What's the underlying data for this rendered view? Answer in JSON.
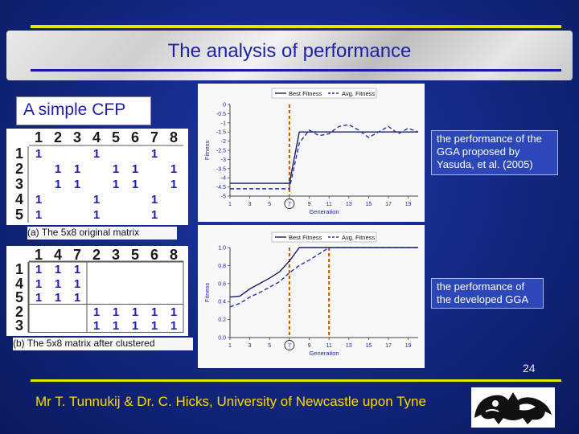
{
  "slide": {
    "title": "The analysis of performance",
    "subtitle": "A simple CFP",
    "page_number": "24",
    "footer": "Mr T. Tunnukij & Dr. C. Hicks, University of Newcastle upon Tyne"
  },
  "matrices": [
    {
      "caption": "(a) The 5x8 original matrix",
      "columns": [
        "1",
        "2",
        "3",
        "4",
        "5",
        "6",
        "7",
        "8"
      ],
      "rows": [
        {
          "label": "1",
          "cells": [
            "1",
            "",
            "",
            "1",
            "",
            "",
            "1",
            ""
          ]
        },
        {
          "label": "2",
          "cells": [
            "",
            "1",
            "1",
            "",
            "1",
            "1",
            "",
            "1"
          ]
        },
        {
          "label": "3",
          "cells": [
            "",
            "1",
            "1",
            "",
            "1",
            "1",
            "",
            "1"
          ]
        },
        {
          "label": "4",
          "cells": [
            "1",
            "",
            "",
            "1",
            "",
            "",
            "1",
            ""
          ]
        },
        {
          "label": "5",
          "cells": [
            "1",
            "",
            "",
            "1",
            "",
            "",
            "1",
            ""
          ]
        }
      ]
    },
    {
      "caption": "(b) The 5x8 matrix after clustered",
      "columns": [
        "1",
        "4",
        "7",
        "2",
        "3",
        "5",
        "6",
        "8"
      ],
      "rows": [
        {
          "label": "1",
          "cells": [
            "1",
            "1",
            "1",
            "",
            "",
            "",
            "",
            ""
          ]
        },
        {
          "label": "4",
          "cells": [
            "1",
            "1",
            "1",
            "",
            "",
            "",
            "",
            ""
          ]
        },
        {
          "label": "5",
          "cells": [
            "1",
            "1",
            "1",
            "",
            "",
            "",
            "",
            ""
          ]
        },
        {
          "label": "2",
          "cells": [
            "",
            "",
            "",
            "1",
            "1",
            "1",
            "1",
            "1"
          ]
        },
        {
          "label": "3",
          "cells": [
            "",
            "",
            "",
            "1",
            "1",
            "1",
            "1",
            "1"
          ]
        }
      ]
    }
  ],
  "callouts": [
    "the performance of the GGA proposed by Yasuda, et al. (2005)",
    "the performance of the developed GGA"
  ],
  "chart_data": [
    {
      "type": "line",
      "xlabel": "Generation",
      "ylabel": "Fitness",
      "x": [
        1,
        2,
        3,
        4,
        5,
        6,
        7,
        8,
        9,
        10,
        11,
        12,
        13,
        14,
        15,
        16,
        17,
        18,
        19,
        20
      ],
      "xticks": [
        1,
        3,
        5,
        7,
        9,
        11,
        13,
        15,
        17,
        19
      ],
      "circled_tick": 7,
      "ylim": [
        -5,
        0
      ],
      "yticks": [
        0,
        -0.5,
        -1,
        -1.5,
        -2,
        -2.5,
        -3,
        -3.5,
        -4,
        -4.5,
        -5
      ],
      "ytick_labels": [
        "0",
        "-0.5",
        "-1",
        "-1.5",
        "-2",
        "-2.5",
        "-3",
        "-3.5",
        "-4",
        "-4.5",
        "-5"
      ],
      "legend_position": "top",
      "markers": [
        7
      ],
      "series": [
        {
          "name": "Best Fitness",
          "style": "solid",
          "color": "#1a1a66",
          "values": [
            -4.3,
            -4.3,
            -4.3,
            -4.3,
            -4.3,
            -4.3,
            -4.3,
            -1.5,
            -1.5,
            -1.5,
            -1.5,
            -1.5,
            -1.5,
            -1.5,
            -1.5,
            -1.5,
            -1.5,
            -1.5,
            -1.5,
            -1.5
          ]
        },
        {
          "name": "Avg. Fitness",
          "style": "dashed",
          "color": "#2233aa",
          "values": [
            -4.6,
            -4.6,
            -4.6,
            -4.6,
            -4.6,
            -4.6,
            -4.6,
            -2.1,
            -1.4,
            -1.7,
            -1.6,
            -1.2,
            -1.1,
            -1.4,
            -1.8,
            -1.5,
            -1.2,
            -1.6,
            -1.3,
            -1.5
          ]
        }
      ]
    },
    {
      "type": "line",
      "xlabel": "Generation",
      "ylabel": "Fitness",
      "x": [
        1,
        2,
        3,
        4,
        5,
        6,
        7,
        8,
        9,
        10,
        11,
        12,
        13,
        14,
        15,
        16,
        17,
        18,
        19,
        20
      ],
      "xticks": [
        1,
        3,
        5,
        7,
        9,
        11,
        13,
        15,
        17,
        19
      ],
      "circled_tick": 7,
      "ylim": [
        0,
        1.0
      ],
      "yticks": [
        0,
        0.2,
        0.4,
        0.6,
        0.8,
        1.0
      ],
      "ytick_labels": [
        "0.0",
        "0.2",
        "0.4",
        "0.6",
        "0.8",
        "1.0"
      ],
      "legend_position": "top",
      "markers": [
        7,
        11
      ],
      "series": [
        {
          "name": "Best Fitness",
          "style": "solid",
          "color": "#1a1a66",
          "values": [
            0.45,
            0.46,
            0.54,
            0.6,
            0.66,
            0.73,
            0.85,
            1.0,
            1.0,
            1.0,
            1.0,
            1.0,
            1.0,
            1.0,
            1.0,
            1.0,
            1.0,
            1.0,
            1.0,
            1.0
          ]
        },
        {
          "name": "Avg. Fitness",
          "style": "dashed",
          "color": "#2233aa",
          "values": [
            0.34,
            0.38,
            0.45,
            0.5,
            0.56,
            0.62,
            0.72,
            0.8,
            0.86,
            0.93,
            1.0,
            1.0,
            1.0,
            1.0,
            1.0,
            1.0,
            1.0,
            1.0,
            1.0,
            1.0
          ]
        }
      ]
    }
  ],
  "colors": {
    "accent_rule": "#e6e600",
    "title_text": "#1f1fa8",
    "footer_text": "#ffd800",
    "marker_line": "#c86400"
  }
}
